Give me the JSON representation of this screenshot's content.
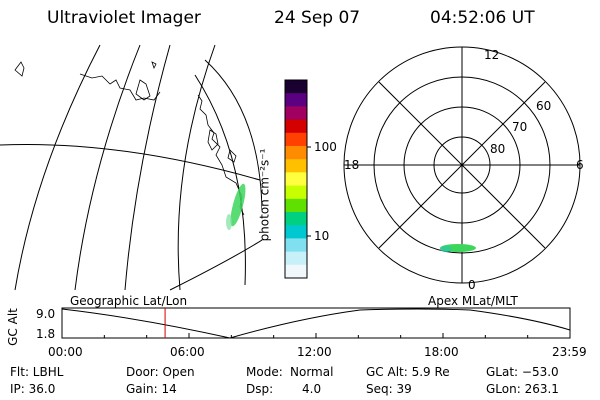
{
  "header": {
    "instrument": "Ultraviolet Imager",
    "date": "24 Sep 07",
    "time": "04:52:06 UT"
  },
  "colorbar": {
    "label": "photon cm⁻²s⁻¹",
    "ticks": [
      "100",
      "10"
    ],
    "colors": [
      "#1a0030",
      "#5a0080",
      "#a00060",
      "#d40000",
      "#ff4000",
      "#ff8c00",
      "#ffc000",
      "#ffff40",
      "#c8ff00",
      "#60e000",
      "#00d080",
      "#00c8d0",
      "#80e0f0",
      "#c8f0f8",
      "#f0f8fc"
    ]
  },
  "polar": {
    "mlt_labels": {
      "top": "12",
      "right": "6",
      "bottom": "0",
      "left": "18"
    },
    "lat_labels": [
      "60",
      "70",
      "80"
    ]
  },
  "timeline": {
    "left_label": "Geographic Lat/Lon",
    "right_label": "Apex MLat/MLT",
    "y_axis_label": "GC Alt",
    "y_ticks": [
      "9.0",
      "1.8"
    ],
    "x_ticks": [
      "00:00",
      "06:00",
      "12:00",
      "18:00",
      "23:59"
    ],
    "current_time_hours": 4.87
  },
  "info": {
    "filter": "Flt: LBHL",
    "door": "Door: Open",
    "mode_label": "Mode:",
    "mode_value": "Normal",
    "gc_alt": "GC Alt: 5.9 Re",
    "glat": "GLat: −53.0",
    "ip": "IP: 36.0",
    "gain": "Gain: 14",
    "dsp_label": "Dsp:",
    "dsp_value": "4.0",
    "seq": "Seq: 39",
    "glon": "GLon: 263.1"
  }
}
